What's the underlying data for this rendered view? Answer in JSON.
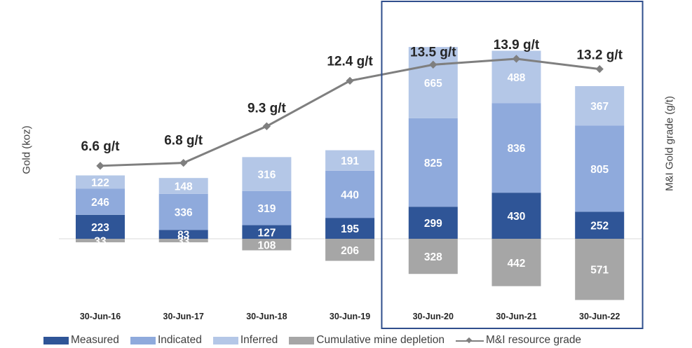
{
  "chart_data": {
    "type": "bar",
    "categories": [
      "30-Jun-16",
      "30-Jun-17",
      "30-Jun-18",
      "30-Jun-19",
      "30-Jun-20",
      "30-Jun-21",
      "30-Jun-22"
    ],
    "series": [
      {
        "name": "Measured",
        "values": [
          223,
          83,
          127,
          195,
          299,
          430,
          252
        ],
        "color": "#2f5597"
      },
      {
        "name": "Indicated",
        "values": [
          246,
          336,
          319,
          440,
          825,
          836,
          805
        ],
        "color": "#8faadc"
      },
      {
        "name": "Inferred",
        "values": [
          122,
          148,
          316,
          191,
          665,
          488,
          367
        ],
        "color": "#b4c7e7"
      },
      {
        "name": "Cumulative mine depletion",
        "values": [
          33,
          33,
          108,
          206,
          328,
          442,
          571
        ],
        "value_labels": [
          "33",
          "33",
          "108",
          "206",
          "328",
          "442",
          "571"
        ],
        "color": "#a6a6a6"
      }
    ],
    "line_series": {
      "name": "M&I resource grade",
      "values": [
        6.6,
        6.8,
        9.3,
        12.4,
        13.5,
        13.9,
        13.2
      ],
      "labels": [
        "6.6 g/t",
        "6.8 g/t",
        "9.3 g/t",
        "12.4 g/t",
        "13.5 g/t",
        "13.9 g/t",
        "13.2 g/t"
      ],
      "color": "#7f7f7f"
    },
    "ylabel": "Gold (koz)",
    "ylabel_right": "M&I Gold grade (g/t)",
    "ylim": [
      -600,
      1800
    ],
    "ylim_right": [
      0,
      16
    ],
    "grid": false,
    "highlight_box": {
      "from_category": "30-Jun-20",
      "to_category": "30-Jun-22",
      "color": "#2f4e8c"
    },
    "legend_position": "bottom"
  }
}
